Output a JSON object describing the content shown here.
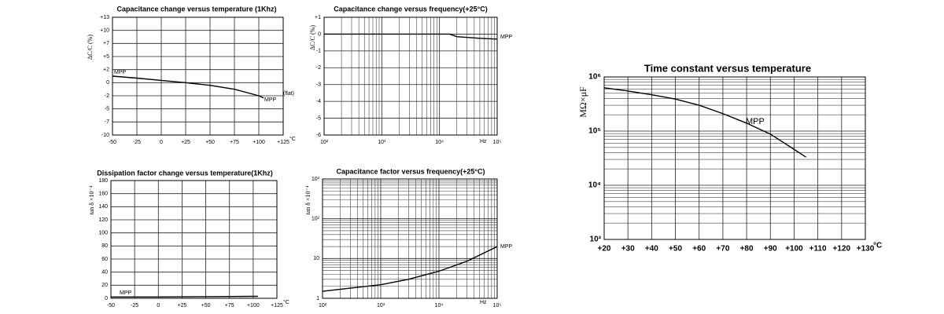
{
  "chart_data": [
    {
      "type": "line",
      "title": "Capacitance change versus temperature (1Khz)",
      "y_label": "ΔC/C (%)",
      "x_unit": "°C",
      "annotations": [
        "MPP",
        "(flat)"
      ],
      "x": [
        -50,
        -25,
        0,
        25,
        50,
        75,
        100,
        105
      ],
      "series": [
        {
          "name": "MPP",
          "color": "#000000",
          "values": [
            1,
            0.7,
            0.35,
            0,
            -0.4,
            -1,
            -2,
            -2.5
          ]
        }
      ],
      "xlim": [
        -50,
        125
      ],
      "xticks": [
        -50,
        -25,
        0,
        {
          "value": 25,
          "label": "+25"
        },
        {
          "value": 50,
          "label": "+50"
        },
        {
          "value": 75,
          "label": "+75"
        },
        {
          "value": 100,
          "label": "+100"
        },
        {
          "value": 125,
          "label": "+125"
        }
      ],
      "ylim": [
        -10,
        13
      ],
      "y_scale": "segmented",
      "yticks": [
        -10,
        -7,
        -5,
        -2,
        0,
        {
          "value": 2,
          "label": "+2"
        },
        {
          "value": 5,
          "label": "+5"
        },
        {
          "value": 7,
          "label": "+7"
        },
        {
          "value": 10,
          "label": "+10"
        },
        {
          "value": 13,
          "label": "+13"
        }
      ],
      "grid": true
    },
    {
      "type": "line",
      "title": "Capacitance change versus frequency(+25°C)",
      "y_label": "ΔC/C (%)",
      "x_unit": "Hz",
      "x": [
        100,
        1000,
        10000,
        15000,
        20000,
        50000,
        100000
      ],
      "series": [
        {
          "name": "MPP",
          "color": "#000000",
          "values": [
            0,
            0,
            0,
            0,
            -0.15,
            -0.25,
            -0.3
          ]
        }
      ],
      "xlim": [
        100,
        100000
      ],
      "x_scale": "log",
      "xticks": [
        {
          "value": 100,
          "label": "10²"
        },
        {
          "value": 1000,
          "label": "10³"
        },
        {
          "value": 10000,
          "label": "10⁴"
        },
        {
          "value": 100000,
          "label": "10⁵"
        }
      ],
      "ylim": [
        -6,
        1
      ],
      "yticks": [
        -6,
        -5,
        -4,
        -3,
        -2,
        -1,
        0,
        {
          "value": 1,
          "label": "+1"
        }
      ],
      "grid": true
    },
    {
      "type": "line",
      "title": "Dissipation factor change versus temperature(1Khz)",
      "y_label": "tan δ ×10⁻⁴",
      "x_unit": "°C",
      "x": [
        -50,
        0,
        50,
        100,
        105
      ],
      "series": [
        {
          "name": "MPP",
          "color": "#000000",
          "values": [
            2,
            2,
            2.5,
            3,
            3
          ]
        }
      ],
      "xlim": [
        -50,
        125
      ],
      "xticks": [
        -50,
        -25,
        0,
        {
          "value": 25,
          "label": "+25"
        },
        {
          "value": 50,
          "label": "+50"
        },
        {
          "value": 75,
          "label": "+75"
        },
        {
          "value": 100,
          "label": "+100"
        },
        {
          "value": 125,
          "label": "+125"
        }
      ],
      "ylim": [
        0,
        180
      ],
      "yticks": [
        0,
        20,
        40,
        60,
        80,
        100,
        120,
        140,
        160,
        180
      ],
      "grid": true
    },
    {
      "type": "line",
      "title": "Capacitance factor versus frequency(+25°C)",
      "y_label": "tan δ ×10⁻⁴",
      "x_unit": "Hz",
      "x": [
        100,
        300,
        1000,
        3000,
        10000,
        30000,
        100000
      ],
      "series": [
        {
          "name": "MPP",
          "color": "#000000",
          "values": [
            1.5,
            1.8,
            2.2,
            3,
            4.8,
            8.5,
            20
          ]
        }
      ],
      "xlim": [
        100,
        100000
      ],
      "x_scale": "log",
      "xticks": [
        {
          "value": 100,
          "label": "10²"
        },
        {
          "value": 1000,
          "label": "10³"
        },
        {
          "value": 10000,
          "label": "10⁴"
        },
        {
          "value": 100000,
          "label": "10⁵"
        }
      ],
      "ylim": [
        1,
        1000
      ],
      "y_scale": "log",
      "yticks": [
        1,
        10,
        {
          "value": 100,
          "label": "10²"
        },
        {
          "value": 1000,
          "label": "10³"
        }
      ],
      "grid": true
    },
    {
      "type": "line",
      "title": "Time constant versus temperature",
      "y_label": "MΩ×μF",
      "x_unit": "°C",
      "x": [
        20,
        30,
        40,
        50,
        60,
        70,
        80,
        90,
        100,
        105
      ],
      "series": [
        {
          "name": "MPP",
          "color": "#000000",
          "values": [
            630000,
            550000,
            470000,
            390000,
            300000,
            210000,
            140000,
            88000,
            46000,
            33000
          ]
        }
      ],
      "xlim": [
        20,
        130
      ],
      "xticks": [
        {
          "value": 20,
          "label": "+20"
        },
        {
          "value": 30,
          "label": "+30"
        },
        {
          "value": 40,
          "label": "+40"
        },
        {
          "value": 50,
          "label": "+50"
        },
        {
          "value": 60,
          "label": "+60"
        },
        {
          "value": 70,
          "label": "+70"
        },
        {
          "value": 80,
          "label": "+80"
        },
        {
          "value": 90,
          "label": "+90"
        },
        {
          "value": 100,
          "label": "+100"
        },
        {
          "value": 110,
          "label": "+110"
        },
        {
          "value": 120,
          "label": "+120"
        },
        {
          "value": 130,
          "label": "+130"
        }
      ],
      "ylim": [
        1000,
        1000000
      ],
      "y_scale": "log",
      "yticks": [
        {
          "value": 1000,
          "label": "10³"
        },
        {
          "value": 10000,
          "label": "10⁴"
        },
        {
          "value": 100000,
          "label": "10⁵"
        },
        {
          "value": 1000000,
          "label": "10⁶"
        }
      ],
      "grid": true
    }
  ]
}
